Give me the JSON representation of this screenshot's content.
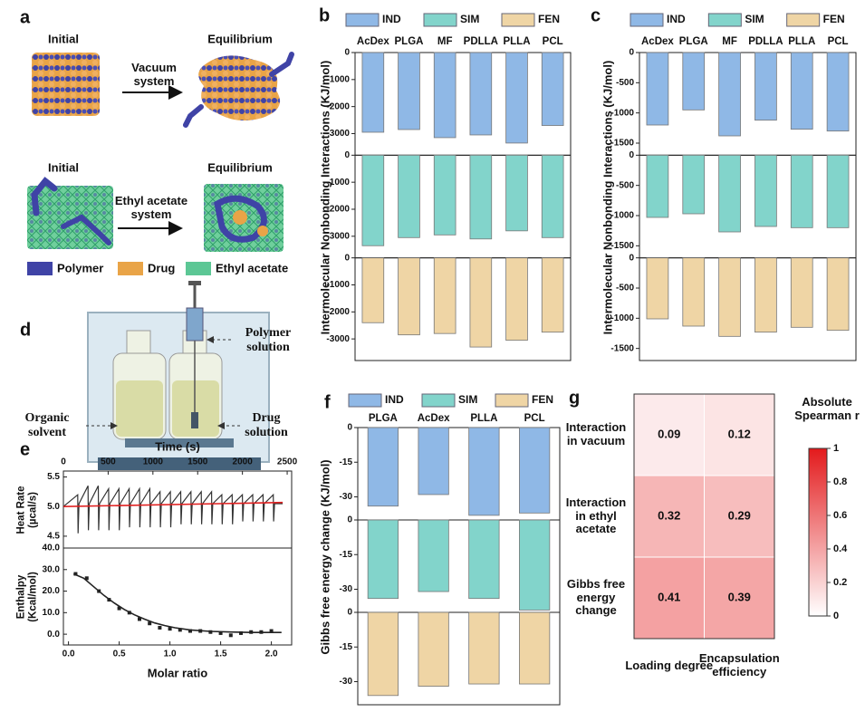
{
  "panel_a": {
    "label": "a",
    "top": {
      "initial": "Initial",
      "equilibrium": "Equilibrium",
      "process": "Vacuum system"
    },
    "bottom": {
      "initial": "Initial",
      "equilibrium": "Equilibrium",
      "process": "Ethyl acetate system"
    },
    "legend": [
      "Polymer",
      "Drug",
      "Ethyl acetate"
    ]
  },
  "panel_d": {
    "label": "d",
    "polymer": "Polymer solution",
    "organic": "Organic solvent",
    "drug": "Drug solution"
  },
  "chart_data": [
    {
      "type": "bar",
      "label": "b",
      "ylabel": "Intermolecular Nonbonding Interactions (KJ/mol)",
      "categories": [
        "AcDex",
        "PLGA",
        "MF",
        "PDLLA",
        "PLLA",
        "PCL"
      ],
      "series": [
        {
          "name": "IND",
          "color": "#8fb8e6",
          "values": [
            -2950,
            -2850,
            -3150,
            -3050,
            -3350,
            -2700
          ]
        },
        {
          "name": "SIM",
          "color": "#82d4cb",
          "values": [
            -3350,
            -3050,
            -2950,
            -3100,
            -2800,
            -3050
          ]
        },
        {
          "name": "FEN",
          "color": "#efd5a5",
          "values": [
            -2400,
            -2850,
            -2800,
            -3300,
            -3050,
            -2750
          ]
        }
      ],
      "ylim": [
        -3800,
        0
      ],
      "yticks": [
        0,
        -1000,
        -2000,
        -3000
      ]
    },
    {
      "type": "bar",
      "label": "c",
      "ylabel": "Intermolecular Nonbonding Interactions (KJ/mol)",
      "categories": [
        "AcDex",
        "PLGA",
        "MF",
        "PDLLA",
        "PLLA",
        "PCL"
      ],
      "series": [
        {
          "name": "IND",
          "color": "#8fb8e6",
          "values": [
            -1200,
            -950,
            -1380,
            -1120,
            -1270,
            -1300
          ]
        },
        {
          "name": "SIM",
          "color": "#82d4cb",
          "values": [
            -1030,
            -970,
            -1270,
            -1180,
            -1200,
            -1200
          ]
        },
        {
          "name": "FEN",
          "color": "#efd5a5",
          "values": [
            -1010,
            -1130,
            -1300,
            -1230,
            -1150,
            -1200
          ]
        }
      ],
      "ylim": [
        -1700,
        0
      ],
      "yticks": [
        0,
        -500,
        -1000,
        -1500
      ]
    },
    {
      "type": "line",
      "label": "e",
      "xlabel": "Time (s)",
      "ylabel": "Heat Rate (µcal/s)",
      "xaxis": "top",
      "series": [
        {
          "color": "#333333",
          "x": [
            0,
            160,
            164,
            174,
            275,
            279,
            289,
            390,
            394,
            404,
            505,
            509,
            519,
            620,
            624,
            634,
            735,
            739,
            749,
            850,
            854,
            864,
            965,
            969,
            979,
            1080,
            1084,
            1094,
            1195,
            1199,
            1209,
            1310,
            1314,
            1324,
            1425,
            1429,
            1439,
            1540,
            1544,
            1554,
            1655,
            1659,
            1669,
            1770,
            1774,
            1784,
            1885,
            1889,
            1899,
            2000,
            2004,
            2014,
            2115,
            2119,
            2129,
            2230,
            2234,
            2244,
            2345,
            2349,
            2359,
            2450
          ],
          "values": [
            5.0,
            5.2,
            4.55,
            5.05,
            5.35,
            4.6,
            5.05,
            5.35,
            4.6,
            5.05,
            5.3,
            4.6,
            5.05,
            5.3,
            4.6,
            5.05,
            5.3,
            4.65,
            5.05,
            5.3,
            4.65,
            5.05,
            5.3,
            4.65,
            5.05,
            5.25,
            4.65,
            5.05,
            5.25,
            4.65,
            5.05,
            5.25,
            4.7,
            5.05,
            5.25,
            4.7,
            5.05,
            5.25,
            4.7,
            5.05,
            5.25,
            4.7,
            5.05,
            5.2,
            4.7,
            5.05,
            5.2,
            4.7,
            5.05,
            5.2,
            4.75,
            5.05,
            5.2,
            4.75,
            5.05,
            5.2,
            4.75,
            5.05,
            5.2,
            4.75,
            5.05,
            5.05
          ]
        },
        {
          "color": "#e02020",
          "x": [
            0,
            2450
          ],
          "values": [
            5.0,
            5.07
          ]
        }
      ],
      "xlim": [
        0,
        2550
      ],
      "xticks": [
        0,
        500,
        1000,
        1500,
        2000,
        2500
      ],
      "ylim": [
        4.3,
        5.6
      ],
      "yticks": [
        4.5,
        {
          "value": 5,
          "label": "5.0"
        },
        5.5
      ]
    },
    {
      "type": "scatter",
      "xlabel": "Molar ratio",
      "ylabel": "Enthalpy (Kcal/mol)",
      "series": [
        {
          "type": "scatter",
          "color": "#222222",
          "x": [
            0.07,
            0.18,
            0.3,
            0.4,
            0.5,
            0.6,
            0.7,
            0.8,
            0.9,
            1.0,
            1.1,
            1.2,
            1.3,
            1.4,
            1.5,
            1.6,
            1.7,
            1.8,
            1.9,
            2.0
          ],
          "values": [
            28,
            26,
            20,
            16,
            12,
            10,
            7,
            5,
            3,
            2.5,
            2,
            1.5,
            1.5,
            1,
            0.5,
            -0.5,
            0.5,
            1,
            1,
            1.5
          ]
        },
        {
          "type": "line",
          "color": "#222222",
          "x": [
            0.05,
            0.15,
            0.25,
            0.35,
            0.45,
            0.55,
            0.65,
            0.75,
            0.85,
            0.95,
            1.05,
            1.2,
            1.4,
            1.6,
            1.8,
            2.0,
            2.1
          ],
          "values": [
            28,
            26,
            22,
            18,
            14.5,
            11.5,
            9,
            7,
            5.2,
            4,
            3,
            2,
            1.3,
            1,
            0.8,
            0.8,
            0.8
          ]
        }
      ],
      "xlim": [
        -0.05,
        2.2
      ],
      "xticks": [
        {
          "value": 0,
          "label": "0.0"
        },
        0.5,
        {
          "value": 1,
          "label": "1.0"
        },
        1.5,
        {
          "value": 2,
          "label": "2.0"
        }
      ],
      "ylim": [
        -5,
        40
      ],
      "yticks": [
        {
          "value": 0,
          "label": "0.0"
        },
        {
          "value": 10,
          "label": "10.0"
        },
        {
          "value": 20,
          "label": "20.0"
        },
        {
          "value": 30,
          "label": "30.0"
        },
        {
          "value": 40,
          "label": "40.0"
        }
      ]
    },
    {
      "type": "bar",
      "label": "f",
      "ylabel": "Gibbs free energy change (KJ/mol)",
      "categories": [
        "PLGA",
        "AcDex",
        "PLLA",
        "PCL"
      ],
      "series": [
        {
          "name": "IND",
          "color": "#8fb8e6",
          "values": [
            -34,
            -29,
            -38,
            -37
          ]
        },
        {
          "name": "SIM",
          "color": "#82d4cb",
          "values": [
            -34,
            -31,
            -34,
            -39
          ]
        },
        {
          "name": "FEN",
          "color": "#efd5a5",
          "values": [
            -36,
            -32,
            -31,
            -31
          ]
        }
      ],
      "ylim": [
        -40,
        0
      ],
      "yticks": [
        0,
        -15,
        -30
      ]
    },
    {
      "type": "heatmap",
      "label": "g",
      "rows": [
        "Interaction in vacuum",
        "Interaction in ethyl acetate",
        "Gibbs free energy change"
      ],
      "columns": [
        "Loading degree",
        "Encapsulation efficiency"
      ],
      "values": [
        [
          0.09,
          0.12
        ],
        [
          0.32,
          0.29
        ],
        [
          0.41,
          0.39
        ]
      ],
      "colorbar_title": "Absolute Spearman r",
      "clim": [
        0,
        1
      ],
      "cmap": [
        "#ffffff",
        "#e31a1c"
      ],
      "cticks": [
        0,
        0.2,
        0.4,
        0.6,
        0.8,
        1
      ]
    }
  ]
}
